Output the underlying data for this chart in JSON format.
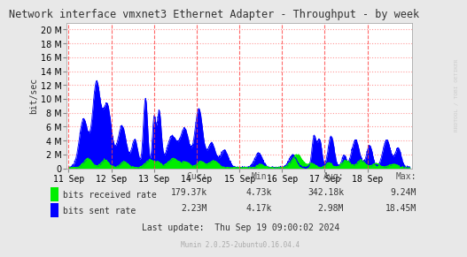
{
  "title": "Network interface vmxnet3 Ethernet Adapter - Throughput - by week",
  "ylabel": "bit/sec",
  "side_label": "RRDTOOL / TOBI OETIKER",
  "background_color": "#E8E8E8",
  "plot_bg_color": "#FFFFFF",
  "grid_color": "#FF9999",
  "x_tick_labels": [
    "11 Sep",
    "12 Sep",
    "13 Sep",
    "14 Sep",
    "15 Sep",
    "16 Sep",
    "17 Sep",
    "18 Sep"
  ],
  "ylim": [
    0,
    21000000
  ],
  "legend_entries": [
    "bits received rate",
    "bits sent rate"
  ],
  "legend_colors": [
    "#00EE00",
    "#0000FF"
  ],
  "stats_cur": [
    "179.37k",
    "2.23M"
  ],
  "stats_min": [
    "4.73k",
    "4.17k"
  ],
  "stats_avg": [
    "342.18k",
    "2.98M"
  ],
  "stats_max": [
    "9.24M",
    "18.45M"
  ],
  "last_update": "Last update:  Thu Sep 19 09:00:02 2024",
  "munin_version": "Munin 2.0.25-2ubuntu0.16.04.4",
  "axis_fontsize": 7,
  "received_color": "#00EE00",
  "sent_color": "#0000FF"
}
